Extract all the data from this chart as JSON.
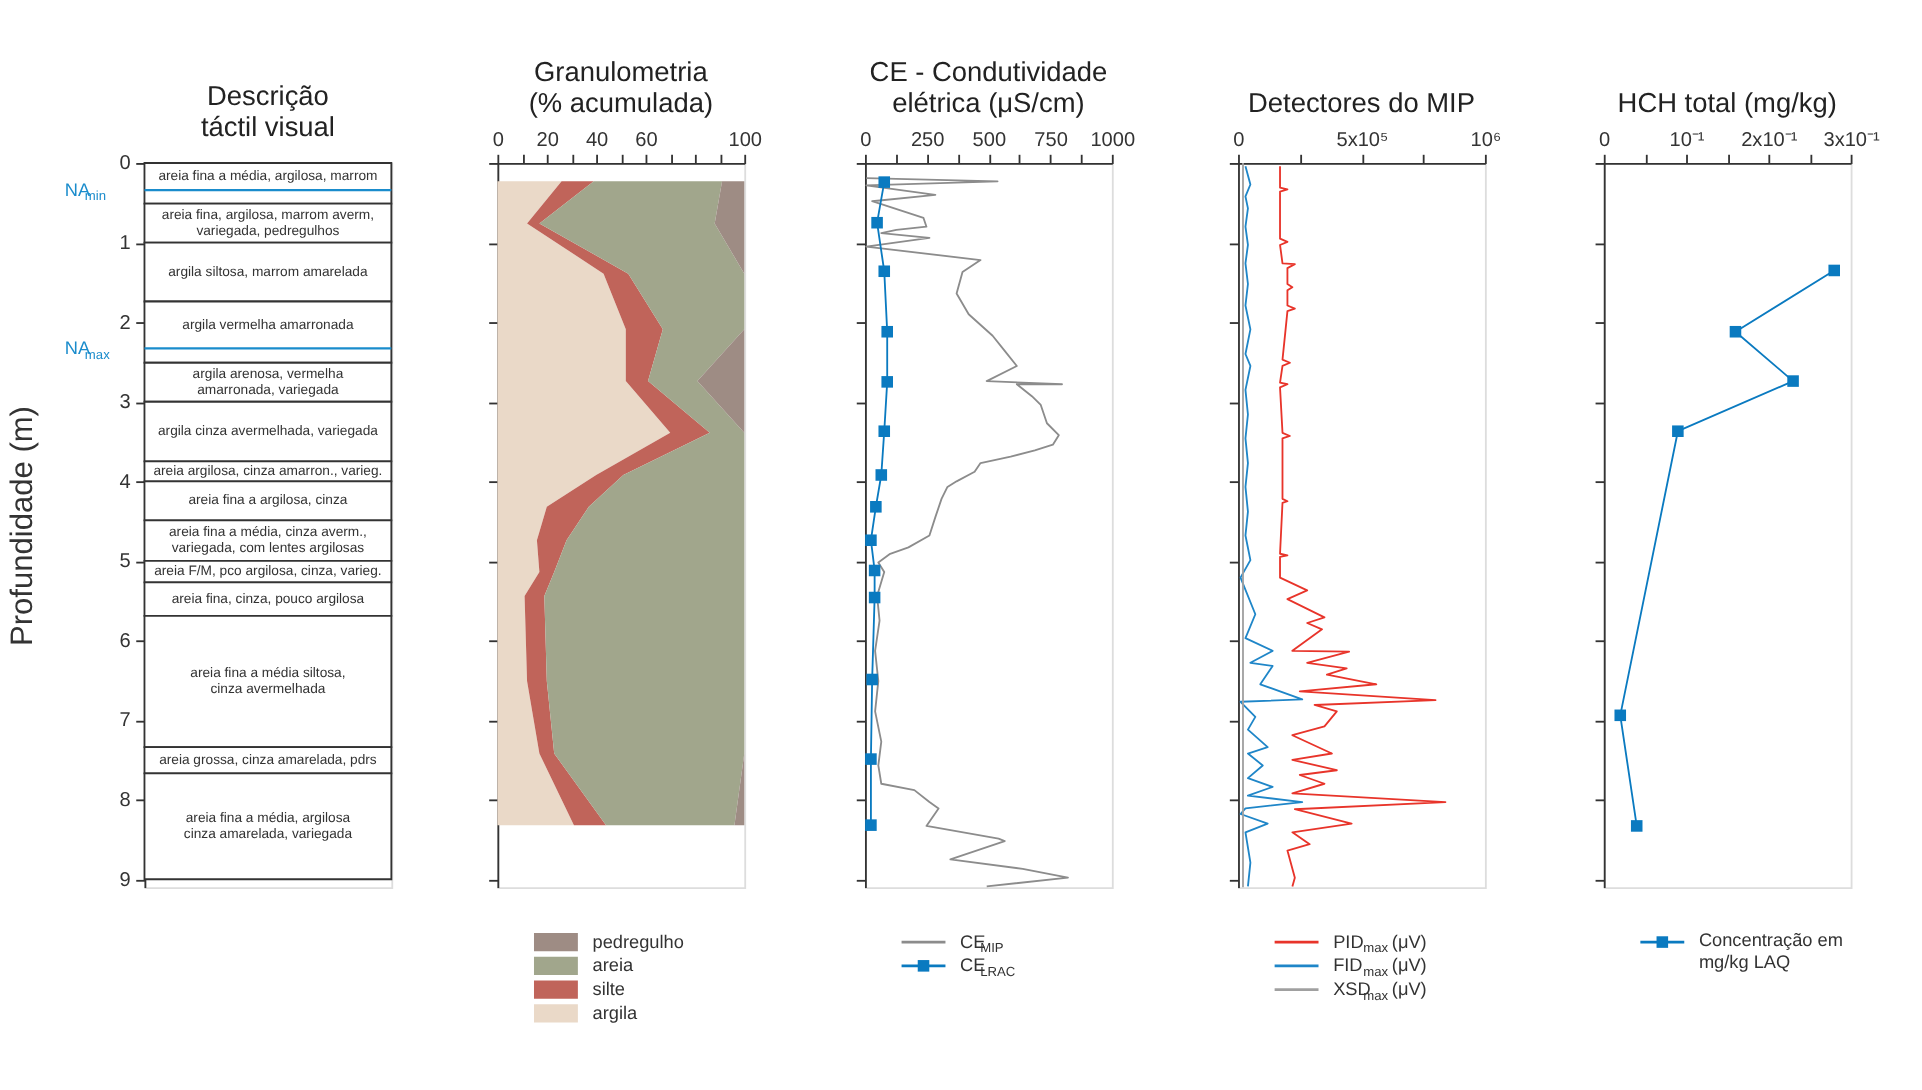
{
  "chart_data": [
    {
      "type": "bar",
      "stacked": true,
      "title": "Descrição\ntáctil visual",
      "ylabel": "Profundidade (m)",
      "ylim": [
        9.1,
        0
      ],
      "yticks": [
        0,
        1,
        2,
        3,
        4,
        5,
        6,
        7,
        8,
        9
      ],
      "tick_labels": "y",
      "grid": false,
      "categories": [
        null
      ],
      "series": [
        {
          "name": "areia fina a média, argilosa, marrom",
          "color": "#ffffff",
          "values": [
            0.51
          ]
        },
        {
          "name": "areia fina, argilosa, marrom averm,\nvariegada, pedregulhos",
          "color": "#ffffff",
          "values": [
            0.49
          ]
        },
        {
          "name": "argila siltosa, marrom amarelada",
          "color": "#ffffff",
          "values": [
            0.74
          ]
        },
        {
          "name": "argila vermelha amarronada",
          "color": "#ffffff",
          "values": [
            0.77
          ]
        },
        {
          "name": "argila arenosa, vermelha\namarronada, variegada",
          "color": "#ffffff",
          "values": [
            0.49
          ]
        },
        {
          "name": "argila cinza avermelhada, variegada",
          "color": "#ffffff",
          "values": [
            0.75
          ]
        },
        {
          "name": "areia argilosa, cinza amarron., varieg.",
          "color": "#ffffff",
          "values": [
            0.25
          ]
        },
        {
          "name": "areia fina a argilosa, cinza",
          "color": "#ffffff",
          "values": [
            0.49
          ]
        },
        {
          "name": "areia fina a média, cinza averm.,\nvariegada, com lentes argilosas",
          "color": "#ffffff",
          "values": [
            0.51
          ]
        },
        {
          "name": "areia F/M, pco argilosa, cinza, varieg.",
          "color": "#ffffff",
          "values": [
            0.27
          ]
        },
        {
          "name": "areia fina, cinza, pouco argilosa",
          "color": "#ffffff",
          "values": [
            0.42
          ]
        },
        {
          "name": "areia fina a média siltosa,\ncinza avermelhada",
          "color": "#ffffff",
          "values": [
            1.65
          ]
        },
        {
          "name": "areia grossa, cinza amarelada, pdrs",
          "color": "#ffffff",
          "values": [
            0.33
          ]
        },
        {
          "name": "areia fina a média, argilosa\ncinza amarelada, variegada",
          "color": "#ffffff",
          "values": [
            1.33
          ]
        }
      ],
      "ref_lines": [
        {
          "axis": "y",
          "value": 0.34,
          "label": "NA$_{min}$",
          "color": "#1a8ccc"
        },
        {
          "axis": "y",
          "value": 2.33,
          "label": "NA$_{max}$",
          "color": "#1a8ccc"
        }
      ]
    },
    {
      "type": "area",
      "stacked": true,
      "orientation": "horizontal",
      "title": "Granulometria\n(% acumulada)",
      "legend": "bottom",
      "grid": false,
      "tick_labels": "x",
      "x": [
        0.23,
        0.76,
        1.39,
        2.09,
        2.74,
        3.39,
        3.92,
        4.32,
        4.74,
        5.14,
        5.44,
        6.51,
        7.42,
        8.32
      ],
      "series": [
        {
          "name": "argila",
          "color": "#ead9c8",
          "values": [
            26,
            12,
            43,
            52,
            52,
            70,
            40,
            20,
            16,
            17,
            11,
            12,
            17,
            31
          ]
        },
        {
          "name": "silte",
          "color": "#c0645a",
          "values": [
            13,
            5,
            10,
            15,
            9,
            16,
            11,
            17,
            12,
            6,
            8,
            8,
            6,
            13
          ]
        },
        {
          "name": "areia",
          "color": "#a1a68c",
          "values": [
            52,
            71,
            47,
            33,
            20,
            14,
            49,
            63,
            72,
            77,
            81,
            80,
            77,
            52
          ]
        },
        {
          "name": "pedregulho",
          "color": "#9e8c84",
          "values": [
            9,
            12,
            0,
            0,
            19,
            0,
            0,
            0,
            0,
            0,
            0,
            0,
            0,
            4
          ]
        }
      ],
      "xlim": [
        0,
        100
      ],
      "xticks": [
        0,
        {
          "value": 10,
          "label": null
        },
        20,
        {
          "value": 30,
          "label": null
        },
        40,
        {
          "value": 50,
          "label": null
        },
        60,
        {
          "value": 70,
          "label": null
        },
        {
          "value": 80,
          "label": null
        },
        {
          "value": 90,
          "label": null
        },
        100
      ],
      "ylim": [
        9.1,
        0
      ],
      "yticks": [
        0,
        1,
        2,
        3,
        4,
        5,
        6,
        7,
        8,
        9
      ]
    },
    {
      "type": "line",
      "orientation": "horizontal",
      "title": "CE - Condutividade\nelétrica (μS/cm)",
      "legend": "bottom",
      "grid": false,
      "tick_labels": "x",
      "line_style": "solid",
      "series": [
        {
          "name": "CE$_{MIP}$",
          "color": "#8c8c8c",
          "marker": "none",
          "x": [
            0.19,
            0.23,
            0.28,
            0.4,
            0.48,
            0.69,
            0.8,
            0.84,
            0.88,
            0.94,
            1.05,
            1.22,
            1.37,
            1.64,
            1.9,
            2.17,
            2.36,
            2.55,
            2.74,
            2.78,
            2.78,
            2.93,
            3.04,
            3.27,
            3.42,
            3.54,
            3.61,
            3.69,
            3.77,
            3.88,
            4.0,
            4.07,
            4.22,
            4.45,
            4.68,
            4.83,
            4.91,
            5.02,
            5.14,
            5.44,
            5.75,
            6.13,
            6.51,
            6.89,
            7.27,
            7.57,
            7.8,
            7.88,
            8.03,
            8.11,
            8.33,
            8.49,
            8.52,
            8.75,
            8.87,
            8.98,
            9.09
          ],
          "values": [
            5,
            537,
            5,
            285,
            29,
            237,
            249,
            127,
            66,
            261,
            5,
            468,
            395,
            371,
            420,
            517,
            566,
            615,
            493,
            798,
            615,
            676,
            712,
            737,
            785,
            761,
            688,
            590,
            468,
            444,
            371,
            334,
            310,
            285,
            261,
            176,
            102,
            54,
            78,
            49,
            59,
            41,
            54,
            41,
            66,
            54,
            66,
            200,
            261,
            298,
            249,
            541,
            566,
            346,
            639,
            822,
            493
          ]
        },
        {
          "name": "CE$_{LRAC}$",
          "color": "#0a7ac0",
          "marker": "square",
          "x": [
            0.24,
            0.75,
            1.36,
            2.12,
            2.75,
            3.37,
            3.92,
            4.32,
            4.74,
            5.12,
            5.46,
            6.49,
            7.49,
            8.32
          ],
          "values": [
            78,
            49,
            78,
            90,
            90,
            78,
            66,
            44,
            24,
            39,
            39,
            29,
            24,
            24
          ]
        }
      ],
      "xlim": [
        0,
        1000
      ],
      "xticks": [
        0,
        {
          "value": 125,
          "label": null
        },
        250,
        {
          "value": 375,
          "label": null
        },
        500,
        {
          "value": 625,
          "label": null
        },
        750,
        {
          "value": 875,
          "label": null
        },
        1000
      ],
      "ylim": [
        9.1,
        0
      ],
      "yticks": [
        0,
        1,
        2,
        3,
        4,
        5,
        6,
        7,
        8,
        9
      ]
    },
    {
      "type": "line",
      "orientation": "horizontal",
      "title": "Detectores do MIP",
      "legend": "bottom",
      "grid": false,
      "tick_labels": "x",
      "marker": "none",
      "line_style": "solid",
      "series": [
        {
          "name": "PID$_{max}$ (μV)",
          "color": "#e8342a",
          "x": [
            0.04,
            0.31,
            0.33,
            0.36,
            0.95,
            0.99,
            1.03,
            1.26,
            1.27,
            1.32,
            1.52,
            1.56,
            1.6,
            1.79,
            1.83,
            1.86,
            2.17,
            2.47,
            2.51,
            2.55,
            2.76,
            2.78,
            2.82,
            3.39,
            3.43,
            3.46,
            4.22,
            4.25,
            4.27,
            4.91,
            4.93,
            4.95,
            5.21,
            5.37,
            5.48,
            5.71,
            5.78,
            5.86,
            6.13,
            6.14,
            6.28,
            6.35,
            6.43,
            6.55,
            6.64,
            6.75,
            6.81,
            6.89,
            7.08,
            7.19,
            7.42,
            7.5,
            7.63,
            7.69,
            7.8,
            7.92,
            8.03,
            8.12,
            8.3,
            8.41,
            8.56,
            8.64,
            8.98,
            9.09
          ],
          "values": [
            170000,
            170000,
            200000,
            170000,
            170000,
            200000,
            170000,
            180000,
            230000,
            200000,
            200000,
            220000,
            200000,
            200000,
            230000,
            200000,
            190000,
            180000,
            210000,
            180000,
            170000,
            200000,
            170000,
            180000,
            210000,
            180000,
            180000,
            200000,
            180000,
            170000,
            200000,
            170000,
            170000,
            280000,
            200000,
            350000,
            280000,
            340000,
            220000,
            450000,
            280000,
            440000,
            360000,
            560000,
            250000,
            800000,
            310000,
            400000,
            350000,
            220000,
            380000,
            220000,
            400000,
            250000,
            350000,
            220000,
            840000,
            230000,
            460000,
            220000,
            290000,
            200000,
            230000,
            220000
          ]
        },
        {
          "name": "FID$_{max}$ (μV)",
          "color": "#1f86c8",
          "x": [
            0.04,
            0.27,
            0.42,
            0.57,
            0.8,
            1.03,
            1.26,
            1.52,
            1.79,
            2.09,
            2.4,
            2.55,
            2.85,
            3.16,
            3.46,
            3.77,
            4.07,
            4.38,
            4.68,
            4.99,
            5.21,
            5.67,
            5.97,
            6.13,
            6.28,
            6.32,
            6.55,
            6.74,
            6.77,
            6.96,
            7.12,
            7.34,
            7.42,
            7.57,
            7.73,
            7.84,
            7.95,
            8.03,
            8.11,
            8.18,
            8.3,
            8.41,
            8.79,
            9.09
          ],
          "values": [
            30000,
            50000,
            30000,
            40000,
            30000,
            40000,
            30000,
            40000,
            30000,
            50000,
            30000,
            50000,
            30000,
            40000,
            30000,
            40000,
            30000,
            40000,
            30000,
            50000,
            10000,
            70000,
            30000,
            140000,
            50000,
            140000,
            90000,
            260000,
            10000,
            70000,
            40000,
            120000,
            40000,
            100000,
            40000,
            140000,
            40000,
            260000,
            30000,
            10000,
            120000,
            30000,
            50000,
            40000
          ]
        },
        {
          "name": "XSD$_{max}$ (μV)",
          "color": "#a0a0a0",
          "x": [
            0,
            9.1
          ],
          "values": [
            20000,
            20000
          ]
        }
      ],
      "xlim": [
        0,
        1000000
      ],
      "xticks": [
        0,
        {
          "value": 250000,
          "label": null
        },
        {
          "value": 500000,
          "label": "5x10⁵"
        },
        {
          "value": 750000,
          "label": null
        },
        {
          "value": 1000000,
          "label": "10⁶"
        }
      ],
      "ylim": [
        9.1,
        0
      ],
      "yticks": [
        0,
        1,
        2,
        3,
        4,
        5,
        6,
        7,
        8,
        9
      ]
    },
    {
      "type": "line",
      "orientation": "horizontal",
      "title": "HCH total (mg/kg)",
      "legend": "bottom",
      "grid": false,
      "tick_labels": "x",
      "marker": "square",
      "line_style": "solid",
      "series": [
        {
          "name": "Concentração em\nmg/kg LAQ",
          "color": "#0a7ac0",
          "x": [
            1.35,
            2.12,
            2.74,
            3.37,
            6.94,
            8.33
          ],
          "values": [
            0.28,
            0.16,
            0.23,
            0.09,
            0.02,
            0.04
          ]
        }
      ],
      "xlim": [
        0,
        0.3
      ],
      "xticks": [
        0,
        {
          "value": 0.05,
          "label": null
        },
        {
          "value": 0.1,
          "label": "10⁻¹"
        },
        {
          "value": 0.15,
          "label": null
        },
        {
          "value": 0.2,
          "label": "2x10⁻¹"
        },
        {
          "value": 0.25,
          "label": null
        },
        {
          "value": 0.3,
          "label": "3x10⁻¹"
        }
      ],
      "ylim": [
        9.1,
        0
      ],
      "yticks": [
        0,
        1,
        2,
        3,
        4,
        5,
        6,
        7,
        8,
        9
      ]
    }
  ]
}
